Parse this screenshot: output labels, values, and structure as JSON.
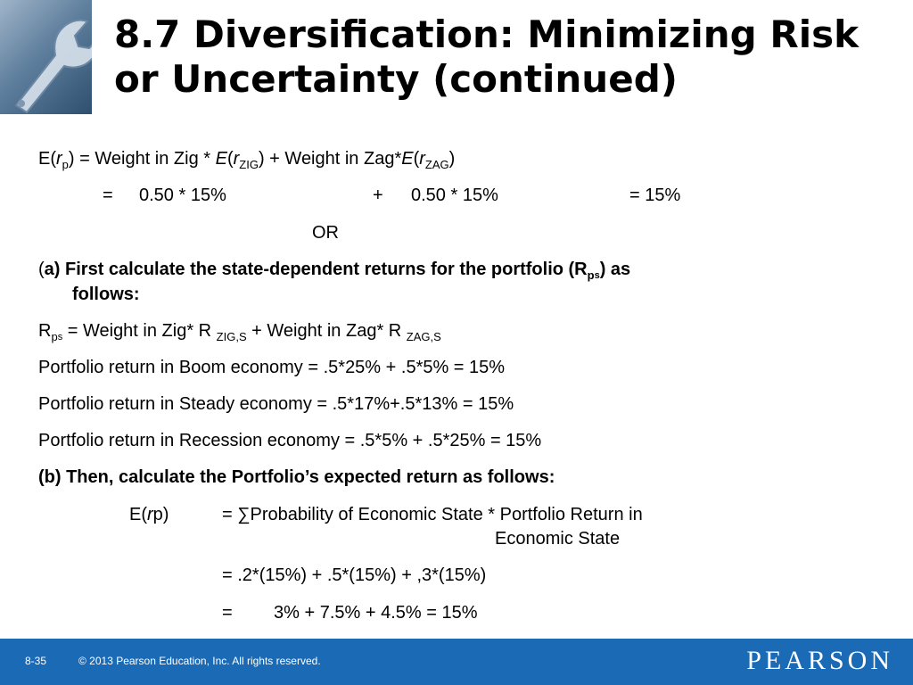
{
  "title": "8.7  Diversification: Minimizing Risk or Uncertainty (continued)",
  "lines": {
    "l1": {
      "a": "E(",
      "r": "r",
      "p": "p",
      "b": ") = Weight in Zig * ",
      "E": "E",
      "c": "(",
      "r2": "r",
      "zig": "ZIG",
      "d": ") + Weight in Zag*",
      "E2": "E",
      "e": "(",
      "r3": "r",
      "zag": "ZAG",
      "f": ")"
    },
    "l2_eq": "=",
    "l2_a": "0.50 * 15%",
    "l2_plus": "+",
    "l2_b": "0.50 * 15%",
    "l2_res": "= 15%",
    "or": "OR",
    "a_paren": "(",
    "a_text1": "a) First calculate the state-dependent returns for the portfolio (R",
    "a_p": "p",
    "a_s": "s",
    "a_text2": ") as",
    "a_text3": "follows:",
    "rps": {
      "R": "R",
      "p": "p",
      "s": "s",
      "t1": " = Weight  in Zig* R ",
      "zigs": "ZIG,S",
      "t2": " + Weight in Zag* R ",
      "zags": "ZAG,S"
    },
    "boom": "Portfolio return in Boom economy   = .5*25% + .5*5% = 15%",
    "steady": "Portfolio return in Steady economy = .5*17%+.5*13% = 15%",
    "recession": "Portfolio return in Recession economy  = .5*5% + .5*25% = 15%",
    "b_text": "(b) Then, calculate the Portfolio’s expected return as follows:",
    "erp": {
      "a": "E(",
      "r": "r",
      "b": "p)"
    },
    "erp_def1": "= ∑Probability of Economic State * Portfolio Return in",
    "erp_def2": "Economic State",
    "erp_calc": "= .2*(15%) + .5*(15%) + ,3*(15%)",
    "erp_res_eq": "=",
    "erp_res": "3% + 7.5% + 4.5% = 15%"
  },
  "footer": {
    "page": "8-35",
    "copyright": "© 2013 Pearson Education, Inc. All rights reserved.",
    "brand": "PEARSON"
  },
  "colors": {
    "footer_bg": "#1a6ab5"
  }
}
